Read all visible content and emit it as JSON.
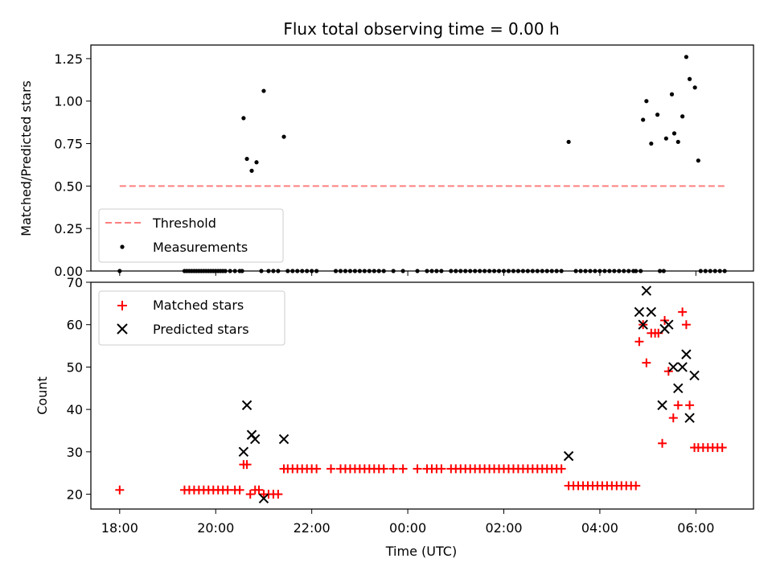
{
  "title": "Flux total observing time = 0.00 h",
  "colors": {
    "threshold": "#ff7f7f",
    "measurements": "#000000",
    "matched": "#ff0000",
    "predicted": "#000000"
  },
  "chart_data": [
    {
      "type": "scatter",
      "ylabel": "Matched/Predicted stars",
      "ylim": [
        0.0,
        1.33
      ],
      "yticks": [
        "0.00",
        "0.25",
        "0.50",
        "0.75",
        "1.00",
        "1.25"
      ],
      "xlim_hours": [
        17.4,
        31.2
      ],
      "legend": {
        "placement": "lower-left",
        "entries": [
          "Threshold",
          "Measurements"
        ]
      },
      "series": [
        {
          "name": "Threshold",
          "kind": "dashed-line",
          "x": [
            18.0,
            30.6
          ],
          "values": [
            0.5,
            0.5
          ]
        },
        {
          "name": "Measurements",
          "kind": "dot",
          "x": [
            18.0,
            19.35,
            19.4,
            19.45,
            19.5,
            19.55,
            19.6,
            19.65,
            19.7,
            19.75,
            19.8,
            19.85,
            19.9,
            19.95,
            20.0,
            20.05,
            20.1,
            20.15,
            20.2,
            20.3,
            20.4,
            20.5,
            20.55,
            20.58,
            20.65,
            20.75,
            20.85,
            20.95,
            21.0,
            21.1,
            21.2,
            21.3,
            21.42,
            21.5,
            21.6,
            21.7,
            21.8,
            21.9,
            22.0,
            22.1,
            22.5,
            22.6,
            22.7,
            22.8,
            22.9,
            23.0,
            23.1,
            23.2,
            23.3,
            23.4,
            23.5,
            23.7,
            23.9,
            24.2,
            24.4,
            24.5,
            24.6,
            24.7,
            24.9,
            25.0,
            25.1,
            25.2,
            25.3,
            25.4,
            25.5,
            25.6,
            25.7,
            25.8,
            25.9,
            26.0,
            26.1,
            26.2,
            26.3,
            26.4,
            26.5,
            26.6,
            26.7,
            26.8,
            26.9,
            27.0,
            27.1,
            27.2,
            27.35,
            27.5,
            27.6,
            27.7,
            27.8,
            27.9,
            28.0,
            28.1,
            28.2,
            28.3,
            28.4,
            28.5,
            28.6,
            28.7,
            28.75,
            28.85,
            28.9,
            28.97,
            29.07,
            29.2,
            29.25,
            29.33,
            29.38,
            29.5,
            29.55,
            29.63,
            29.72,
            29.8,
            29.87,
            29.98,
            30.05,
            30.1,
            30.2,
            30.3,
            30.4,
            30.5,
            30.6
          ],
          "values": [
            0.0,
            0.0,
            0.0,
            0.0,
            0.0,
            0.0,
            0.0,
            0.0,
            0.0,
            0.0,
            0.0,
            0.0,
            0.0,
            0.0,
            0.0,
            0.0,
            0.0,
            0.0,
            0.0,
            0.0,
            0.0,
            0.0,
            0.0,
            0.9,
            0.66,
            0.59,
            0.64,
            0.0,
            1.06,
            0.0,
            0.0,
            0.0,
            0.79,
            0.0,
            0.0,
            0.0,
            0.0,
            0.0,
            0.0,
            0.0,
            0.0,
            0.0,
            0.0,
            0.0,
            0.0,
            0.0,
            0.0,
            0.0,
            0.0,
            0.0,
            0.0,
            0.0,
            0.0,
            0.0,
            0.0,
            0.0,
            0.0,
            0.0,
            0.0,
            0.0,
            0.0,
            0.0,
            0.0,
            0.0,
            0.0,
            0.0,
            0.0,
            0.0,
            0.0,
            0.0,
            0.0,
            0.0,
            0.0,
            0.0,
            0.0,
            0.0,
            0.0,
            0.0,
            0.0,
            0.0,
            0.0,
            0.0,
            0.76,
            0.0,
            0.0,
            0.0,
            0.0,
            0.0,
            0.0,
            0.0,
            0.0,
            0.0,
            0.0,
            0.0,
            0.0,
            0.0,
            0.0,
            0.0,
            0.89,
            1.0,
            0.75,
            0.92,
            0.0,
            0.0,
            0.78,
            1.04,
            0.81,
            0.76,
            0.91,
            1.26,
            1.13,
            1.08,
            0.65,
            0.0,
            0.0,
            0.0,
            0.0,
            0.0,
            0.0
          ]
        }
      ]
    },
    {
      "type": "scatter",
      "xlabel": "Time (UTC)",
      "ylabel": "Count",
      "ylim": [
        16.5,
        70
      ],
      "yticks": [
        "20",
        "30",
        "40",
        "50",
        "60",
        "70"
      ],
      "xticks": [
        "18:00",
        "20:00",
        "22:00",
        "00:00",
        "02:00",
        "04:00",
        "06:00"
      ],
      "xlim_hours": [
        17.4,
        31.2
      ],
      "legend": {
        "placement": "top-left",
        "entries": [
          "Matched stars",
          "Predicted stars"
        ]
      },
      "series": [
        {
          "name": "Matched stars",
          "kind": "plus",
          "x": [
            18.0,
            19.35,
            19.45,
            19.55,
            19.65,
            19.75,
            19.85,
            19.95,
            20.05,
            20.15,
            20.25,
            20.4,
            20.5,
            20.58,
            20.65,
            20.72,
            20.82,
            20.9,
            21.0,
            21.1,
            21.2,
            21.3,
            21.42,
            21.5,
            21.6,
            21.7,
            21.8,
            21.9,
            22.0,
            22.1,
            22.4,
            22.6,
            22.7,
            22.8,
            22.9,
            23.0,
            23.1,
            23.2,
            23.3,
            23.4,
            23.5,
            23.7,
            23.9,
            24.2,
            24.4,
            24.5,
            24.6,
            24.7,
            24.9,
            25.0,
            25.1,
            25.2,
            25.3,
            25.4,
            25.5,
            25.6,
            25.7,
            25.8,
            25.9,
            26.0,
            26.1,
            26.2,
            26.3,
            26.4,
            26.5,
            26.6,
            26.7,
            26.8,
            26.9,
            27.0,
            27.1,
            27.2,
            27.35,
            27.45,
            27.55,
            27.65,
            27.75,
            27.85,
            27.95,
            28.05,
            28.15,
            28.25,
            28.35,
            28.45,
            28.55,
            28.65,
            28.75,
            28.82,
            28.9,
            28.97,
            29.07,
            29.15,
            29.22,
            29.3,
            29.35,
            29.43,
            29.53,
            29.63,
            29.72,
            29.8,
            29.87,
            29.97,
            30.05,
            30.15,
            30.25,
            30.35,
            30.45,
            30.55
          ],
          "values": [
            21,
            21,
            21,
            21,
            21,
            21,
            21,
            21,
            21,
            21,
            21,
            21,
            21,
            27,
            27,
            20,
            21,
            21,
            20,
            20,
            20,
            20,
            26,
            26,
            26,
            26,
            26,
            26,
            26,
            26,
            26,
            26,
            26,
            26,
            26,
            26,
            26,
            26,
            26,
            26,
            26,
            26,
            26,
            26,
            26,
            26,
            26,
            26,
            26,
            26,
            26,
            26,
            26,
            26,
            26,
            26,
            26,
            26,
            26,
            26,
            26,
            26,
            26,
            26,
            26,
            26,
            26,
            26,
            26,
            26,
            26,
            26,
            22,
            22,
            22,
            22,
            22,
            22,
            22,
            22,
            22,
            22,
            22,
            22,
            22,
            22,
            22,
            56,
            60,
            51,
            58,
            58,
            58,
            32,
            61,
            49,
            38,
            41,
            63,
            60,
            41,
            31,
            31,
            31,
            31,
            31,
            31,
            31
          ]
        },
        {
          "name": "Predicted stars",
          "kind": "x",
          "x": [
            20.58,
            20.65,
            20.75,
            20.82,
            21.0,
            21.42,
            27.35,
            28.82,
            28.9,
            28.97,
            29.07,
            29.3,
            29.35,
            29.43,
            29.53,
            29.63,
            29.72,
            29.8,
            29.87,
            29.97
          ],
          "values": [
            30,
            41,
            34,
            33,
            19,
            33,
            29,
            63,
            60,
            68,
            63,
            41,
            59,
            60,
            50,
            45,
            50,
            53,
            38,
            48
          ]
        }
      ]
    }
  ]
}
